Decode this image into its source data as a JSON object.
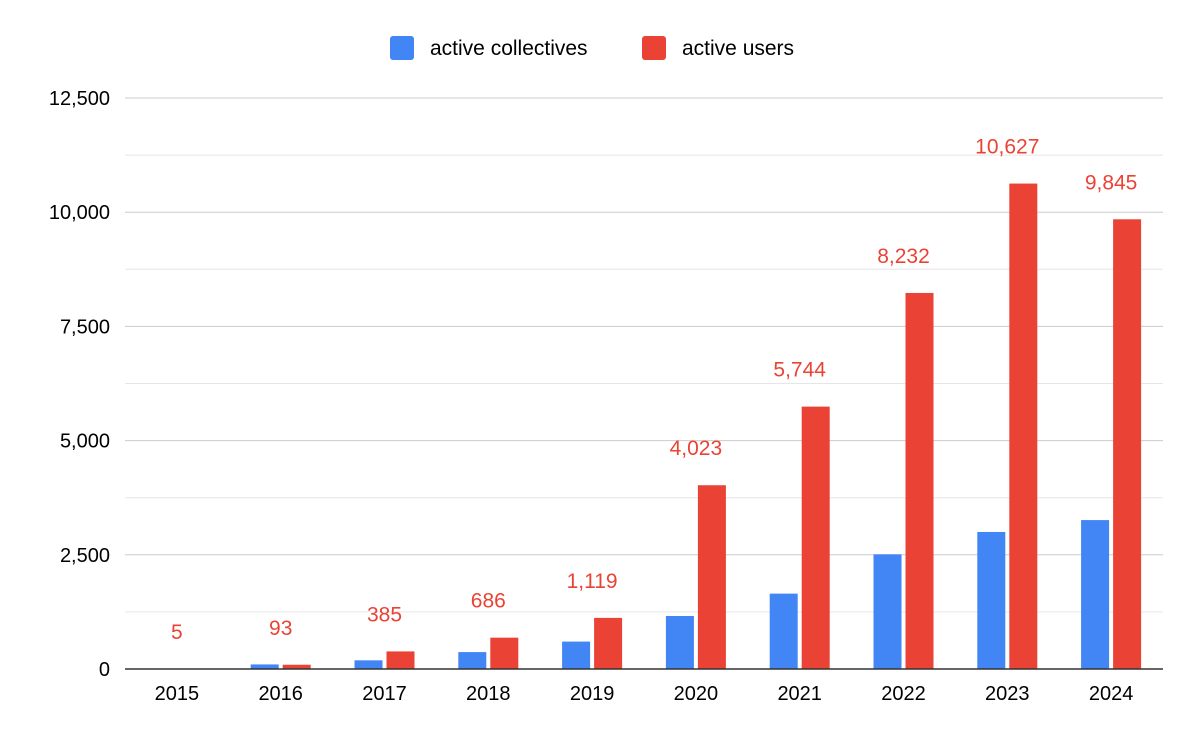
{
  "chart_data": {
    "type": "bar",
    "title": "",
    "xlabel": "",
    "ylabel": "",
    "categories": [
      "2015",
      "2016",
      "2017",
      "2018",
      "2019",
      "2020",
      "2021",
      "2022",
      "2023",
      "2024"
    ],
    "series": [
      {
        "name": "active collectives",
        "color": "#4285f4",
        "values": [
          0,
          100,
          190,
          370,
          600,
          1160,
          1650,
          2510,
          3000,
          3260
        ],
        "show_labels": false
      },
      {
        "name": "active users",
        "color": "#ea4335",
        "values": [
          5,
          93,
          385,
          686,
          1119,
          4023,
          5744,
          8232,
          10627,
          9845
        ],
        "value_labels": [
          "5",
          "93",
          "385",
          "686",
          "1,119",
          "4,023",
          "5,744",
          "8,232",
          "10,627",
          "9,845"
        ],
        "show_labels": true
      }
    ],
    "ylim": [
      0,
      12500
    ],
    "yticks": [
      0,
      2500,
      5000,
      7500,
      10000,
      12500
    ],
    "ytick_labels": [
      "0",
      "2,500",
      "5,000",
      "7,500",
      "10,000",
      "12,500"
    ],
    "minor_gridlines": true,
    "legend_position": "top-center",
    "label_color": "#ea4335",
    "axis_text_color": "#000000",
    "grid_color": "#cccccc",
    "minor_grid_color": "#e6e6e6",
    "axis_line_color": "#333333"
  }
}
